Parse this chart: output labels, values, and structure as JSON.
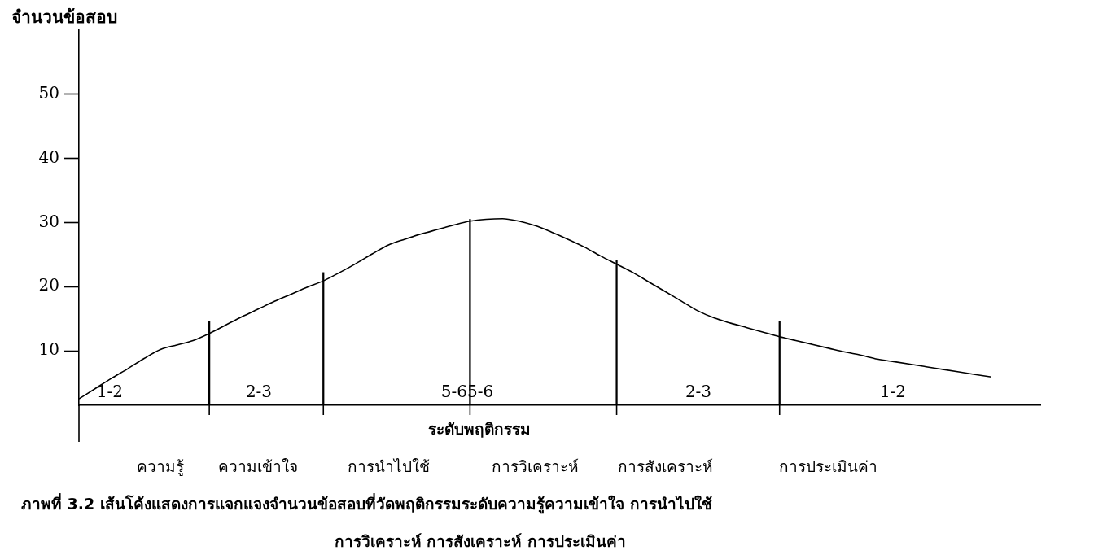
{
  "chart_data": {
    "type": "line",
    "xlabel": "ระดับพฤติกรรม",
    "ylabel": "จำนวนข้อสอบ",
    "categories": [
      null,
      null,
      null,
      null,
      null,
      "ความรู้",
      null,
      null,
      null,
      null,
      null,
      "ความเข้าใจ",
      null,
      null,
      null,
      null,
      null,
      null,
      null,
      "การนำไปใช้",
      null,
      null,
      null,
      null,
      null,
      null,
      null,
      null,
      "การวิเคราะห์",
      null,
      null,
      null,
      null,
      null,
      null,
      null,
      "การสังเคราะห์",
      null,
      null,
      null,
      null,
      null,
      null,
      null,
      null,
      null,
      "การประเมินค่า",
      null,
      null,
      null,
      null,
      null,
      null,
      null,
      null,
      null,
      null,
      null,
      null,
      null
    ],
    "ylim": [
      1.5,
      60
    ],
    "yticks": [
      10,
      20,
      30,
      40,
      50
    ],
    "series": [
      {
        "color": "#000000",
        "values": [
          2.5,
          4.1,
          5.7,
          7.2,
          8.8,
          10.2,
          10.9,
          11.6,
          12.7,
          14.0,
          15.3,
          16.5,
          17.7,
          18.8,
          19.9,
          20.9,
          22.2,
          23.6,
          25.1,
          26.5,
          27.4,
          28.2,
          28.9,
          29.6,
          30.2,
          30.5,
          30.6,
          30.2,
          29.5,
          28.5,
          27.4,
          26.2,
          24.8,
          23.5,
          22.2,
          20.7,
          19.2,
          17.7,
          16.2,
          15.1,
          14.3,
          13.6,
          12.9,
          12.2,
          11.6,
          11.0,
          10.4,
          9.8,
          9.3,
          8.7,
          8.3,
          7.9,
          7.5,
          7.1,
          6.7,
          6.3,
          5.9,
          null,
          null,
          null
        ]
      },
      {
        "type": "bar",
        "color": "#000000",
        "values": [
          null,
          null,
          null,
          null,
          null,
          null,
          null,
          null,
          13.1,
          null,
          null,
          null,
          null,
          null,
          null,
          20.7,
          null,
          null,
          null,
          null,
          null,
          null,
          null,
          null,
          29,
          null,
          null,
          null,
          null,
          null,
          null,
          null,
          null,
          22.6,
          null,
          null,
          null,
          null,
          null,
          null,
          null,
          null,
          null,
          13.1,
          null,
          null,
          null,
          null,
          null,
          null,
          null,
          null,
          null,
          null,
          null,
          null,
          null,
          null,
          null,
          null
        ],
        "base": [
          null,
          null,
          null,
          null,
          null,
          null,
          null,
          null,
          1.5,
          null,
          null,
          null,
          null,
          null,
          null,
          1.5,
          null,
          null,
          null,
          null,
          null,
          null,
          null,
          null,
          1.5,
          null,
          null,
          null,
          null,
          null,
          null,
          null,
          null,
          1.5,
          null,
          null,
          null,
          null,
          null,
          null,
          null,
          null,
          null,
          1.5,
          null,
          null,
          null,
          null,
          null,
          null,
          null,
          null,
          null,
          null,
          null,
          null,
          null,
          null,
          null,
          null
        ]
      }
    ],
    "annotations": [
      "1-2",
      "2-3",
      "5-65-6",
      "2-3",
      "1-2",
      "ภาพที่  3.2   เส้นโค้งแสดงการแจกแจงจำนวนข้อสอบที่วัดพฤติกรรมระดับความรู้ความเข้าใจ  การนำไปใช้",
      "การวิเคราะห์  การสังเคราะห์  การประเมินค่า"
    ]
  }
}
